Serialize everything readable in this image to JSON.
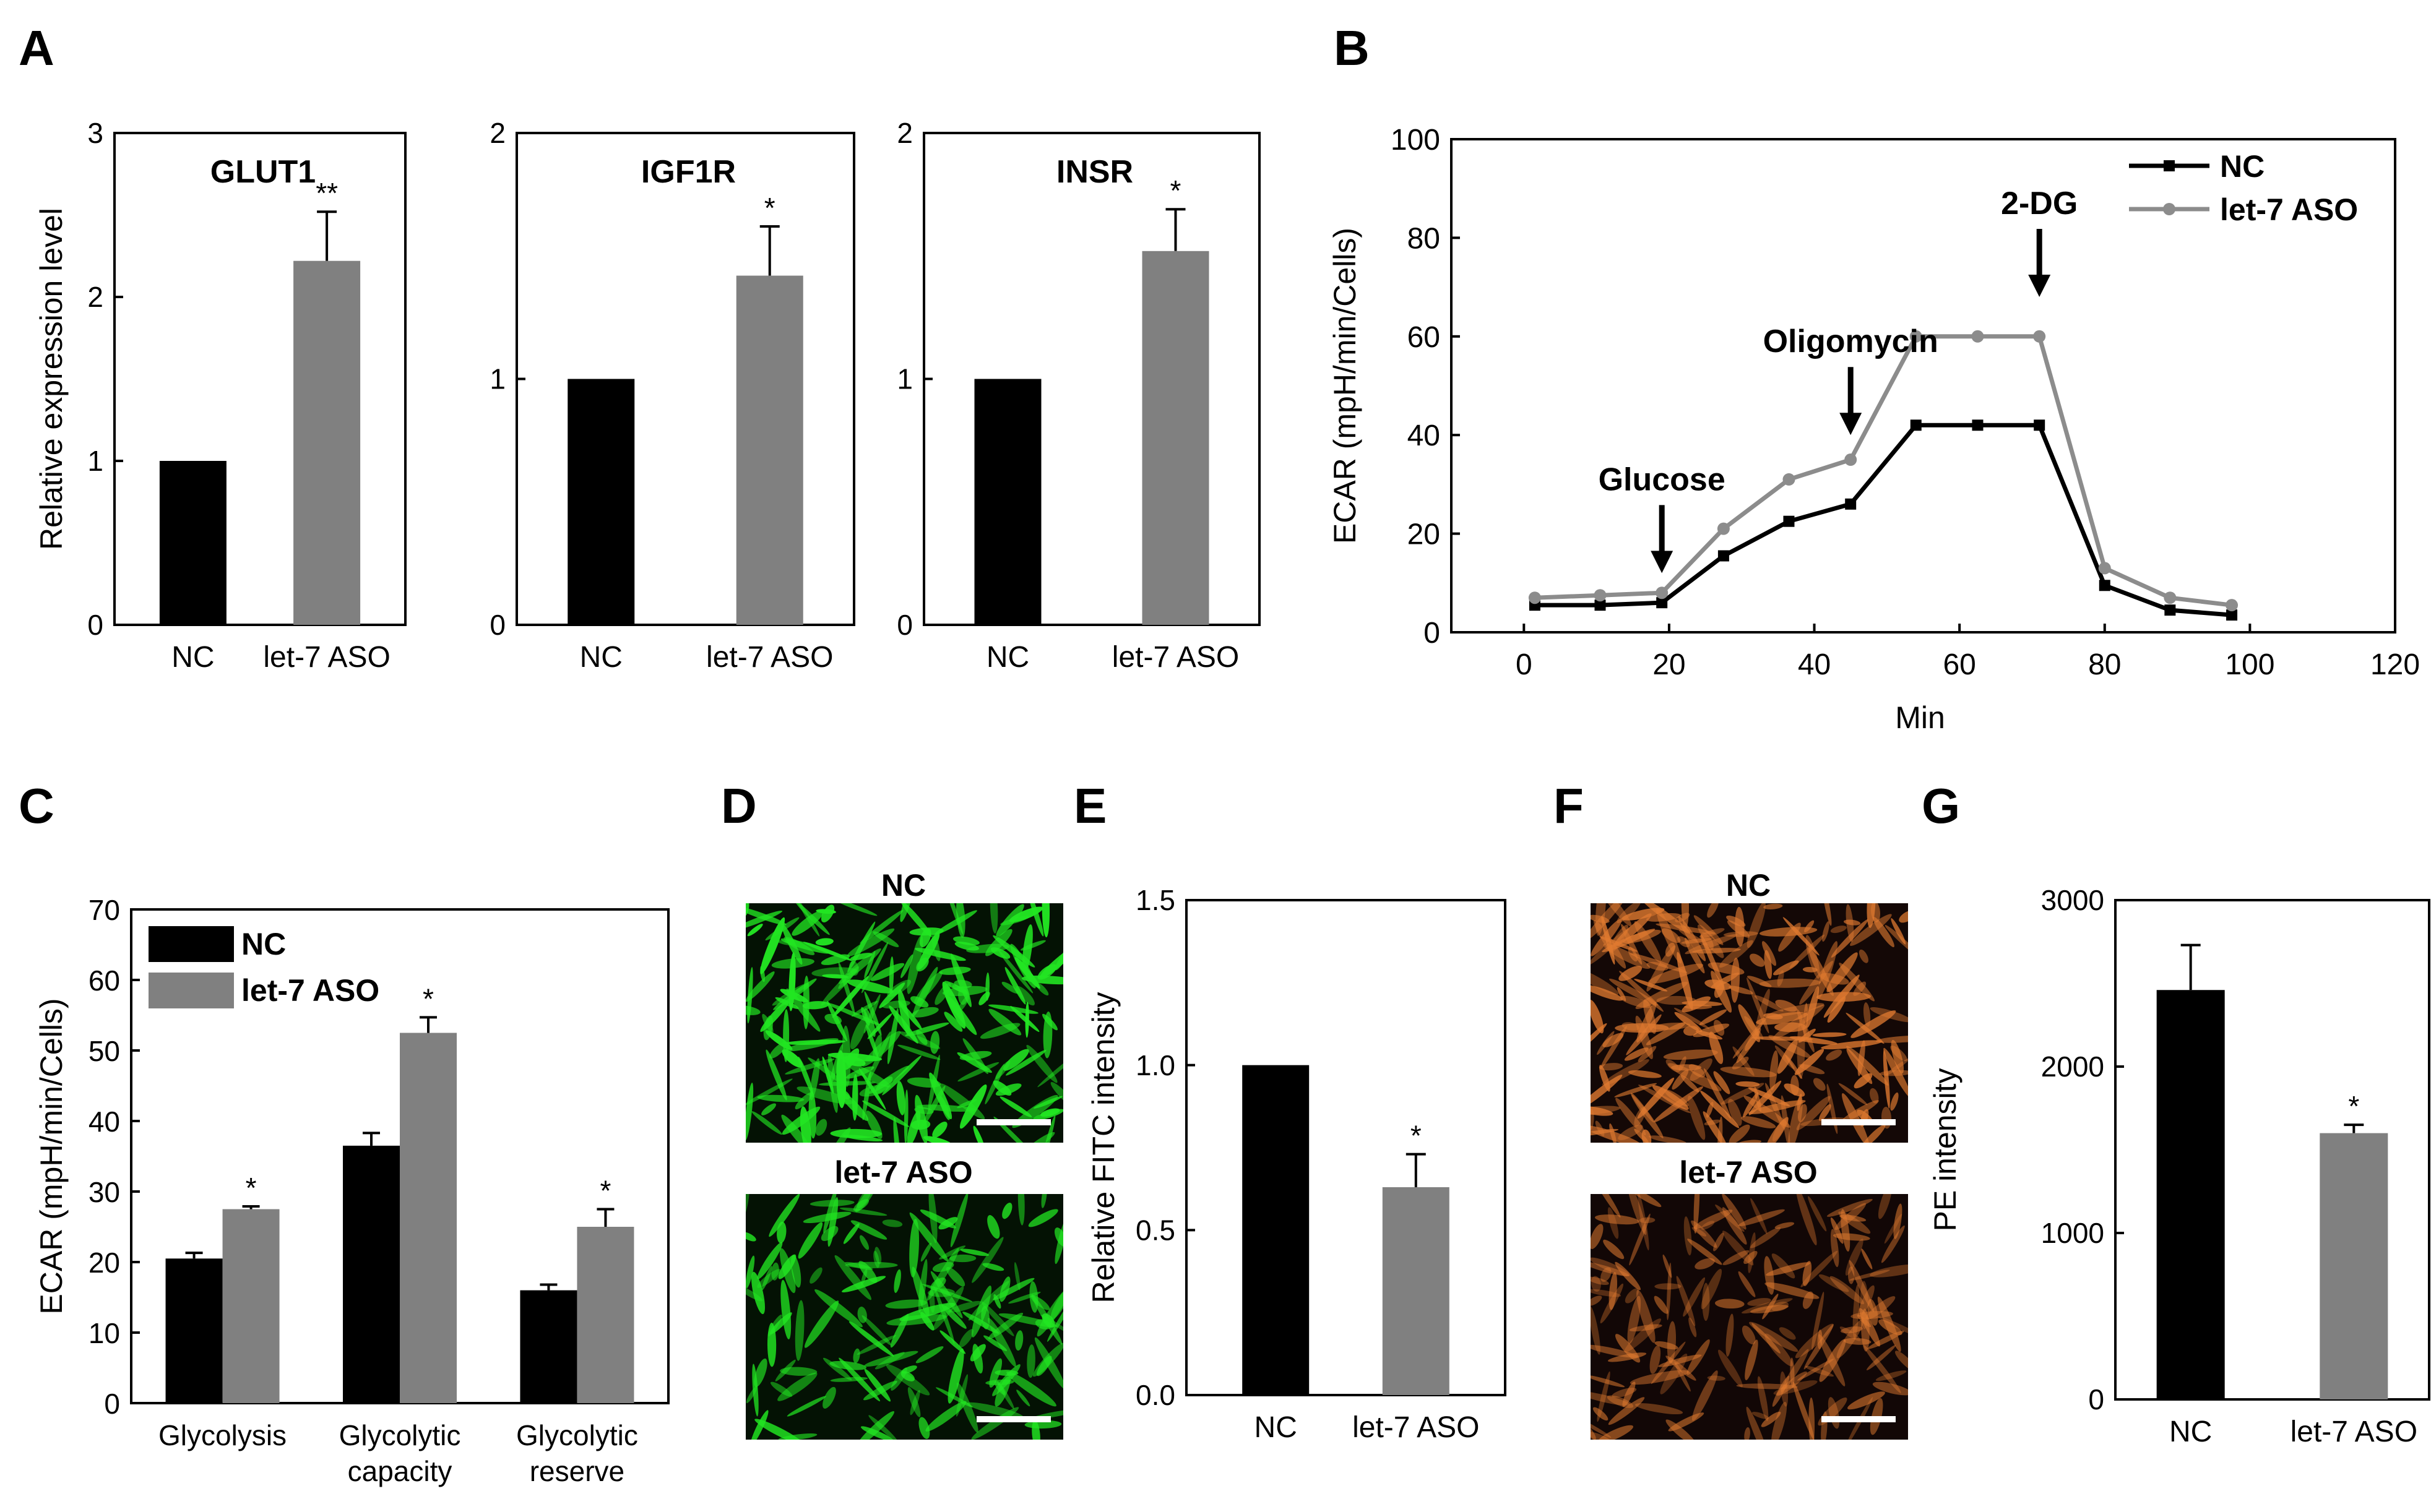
{
  "panel_letters": [
    "A",
    "B",
    "C",
    "D",
    "E",
    "F",
    "G"
  ],
  "colors": {
    "nc": "#000000",
    "aso": "#808080",
    "aso_line": "#8c8c8c",
    "green_cells": "#22e622",
    "orange_cells": "#e07a30"
  },
  "images": {
    "D": {
      "top_label": "NC",
      "bottom_label": "let-7 ASO",
      "style": "green fluorescence"
    },
    "F": {
      "top_label": "NC",
      "bottom_label": "let-7 ASO",
      "style": "orange fluorescence"
    }
  },
  "chart_data": [
    {
      "id": "A1",
      "type": "bar",
      "title": "GLUT1",
      "ylabel": "Relative expression level",
      "categories": [
        "NC",
        "let-7 ASO"
      ],
      "values": [
        1.0,
        2.22
      ],
      "errors": [
        0,
        0.3
      ],
      "sig": [
        "",
        "**"
      ],
      "ylim": [
        0,
        3
      ],
      "yticks": [
        "0",
        "1",
        "2",
        "3"
      ]
    },
    {
      "id": "A2",
      "type": "bar",
      "title": "IGF1R",
      "categories": [
        "NC",
        "let-7 ASO"
      ],
      "values": [
        1.0,
        1.42
      ],
      "errors": [
        0,
        0.2
      ],
      "sig": [
        "",
        "*"
      ],
      "ylim": [
        0,
        2
      ],
      "yticks": [
        "0",
        "1",
        "2"
      ]
    },
    {
      "id": "A3",
      "type": "bar",
      "title": "INSR",
      "categories": [
        "NC",
        "let-7 ASO"
      ],
      "values": [
        1.0,
        1.52
      ],
      "errors": [
        0,
        0.17
      ],
      "sig": [
        "",
        "*"
      ],
      "ylim": [
        0,
        2
      ],
      "yticks": [
        "0",
        "1",
        "2"
      ]
    },
    {
      "id": "B",
      "type": "line",
      "xlabel": "Min",
      "ylabel": "ECAR (mpH/min/Cells)",
      "xlim": [
        -10,
        120
      ],
      "ylim": [
        0,
        100
      ],
      "xticks": [
        "0",
        "20",
        "40",
        "60",
        "80",
        "100",
        "120"
      ],
      "yticks": [
        "0",
        "20",
        "40",
        "60",
        "80",
        "100"
      ],
      "x": [
        1.5,
        10.5,
        19,
        27.5,
        36.5,
        45,
        54,
        62.5,
        71,
        80,
        89,
        97.5
      ],
      "series": [
        {
          "name": "NC",
          "values": [
            5.5,
            5.5,
            6,
            15.5,
            22.5,
            26,
            42,
            42,
            42,
            9.5,
            4.5,
            3.5
          ]
        },
        {
          "name": "let-7 ASO",
          "values": [
            7,
            7.5,
            8,
            21,
            31,
            35,
            60,
            60,
            60,
            13,
            7,
            5.5
          ]
        }
      ],
      "annotations": [
        {
          "text": "Glucose",
          "x": 19,
          "y": 12
        },
        {
          "text": "Oligomycin",
          "x": 45,
          "y": 40
        },
        {
          "text": "2-DG",
          "x": 71,
          "y": 68
        }
      ]
    },
    {
      "id": "C",
      "type": "bar",
      "ylabel": "ECAR (mpH/min/Cells)",
      "categories": [
        "Glycolysis",
        "Glycolytic capacity",
        "Glycolytic reserve"
      ],
      "series": [
        {
          "name": "NC",
          "values": [
            20.5,
            36.5,
            16
          ],
          "errors": [
            0.8,
            1.8,
            0.8
          ]
        },
        {
          "name": "let-7 ASO",
          "values": [
            27.5,
            52.5,
            25
          ],
          "errors": [
            0.4,
            2.2,
            2.5
          ],
          "sig": [
            "*",
            "*",
            "*"
          ]
        }
      ],
      "ylim": [
        0,
        70
      ],
      "yticks": [
        "0",
        "10",
        "20",
        "30",
        "40",
        "50",
        "60",
        "70"
      ]
    },
    {
      "id": "E",
      "type": "bar",
      "ylabel": "Relative FITC intensity",
      "categories": [
        "NC",
        "let-7 ASO"
      ],
      "values": [
        1.0,
        0.63
      ],
      "errors": [
        0,
        0.1
      ],
      "sig": [
        "",
        "*"
      ],
      "ylim": [
        0,
        1.5
      ],
      "yticks": [
        "0.0",
        "0.5",
        "1.0",
        "1.5"
      ]
    },
    {
      "id": "G",
      "type": "bar",
      "ylabel": "PE intensity",
      "categories": [
        "NC",
        "let-7 ASO"
      ],
      "values": [
        2460,
        1600
      ],
      "errors": [
        270,
        50
      ],
      "sig": [
        "",
        "*"
      ],
      "ylim": [
        0,
        3000
      ],
      "yticks": [
        "0",
        "1000",
        "2000",
        "3000"
      ]
    }
  ]
}
